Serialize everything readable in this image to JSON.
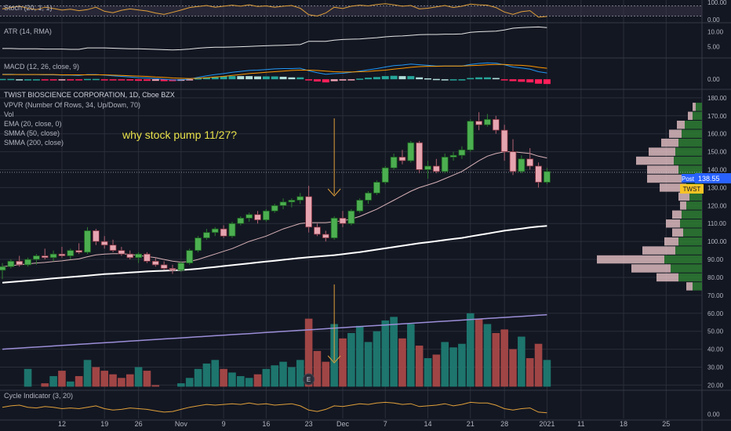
{
  "chart_data": {
    "type": "candlestick",
    "title": "TWIST BIOSCIENCE CORPORATION, 1D, Cboe BZX",
    "annotation": "why stock pump 11/27?",
    "panes": {
      "stoch": {
        "label": "Stoch (20, 1, 1)",
        "ticks": [
          {
            "v": 100,
            "label": "100.00"
          },
          {
            "v": 0,
            "label": "0.00"
          }
        ],
        "ylim": [
          -5,
          105
        ]
      },
      "atr": {
        "label": "ATR (14, RMA)",
        "ticks": [
          {
            "v": 10,
            "label": "10.00"
          },
          {
            "v": 5,
            "label": "5.00"
          }
        ],
        "ylim": [
          2,
          12.5
        ]
      },
      "macd": {
        "label": "MACD (12, 26, close, 9)",
        "ticks": [
          {
            "v": 0,
            "label": "0.00"
          }
        ],
        "ylim": [
          -2.2,
          6
        ]
      },
      "cycle": {
        "label": "Cycle Indicator (3, 20)",
        "ticks": [
          {
            "v": 0,
            "label": "0.00"
          }
        ],
        "ylim": [
          -0.3,
          1.6
        ]
      }
    },
    "main_legend": [
      "VPVR (Number Of Rows, 34, Up/Down, 70)",
      "Vol",
      "EMA (20, close, 0)",
      "SMMA (50, close)",
      "SMMA (200, close)"
    ],
    "price_ticks": [
      {
        "v": 180,
        "label": "180.00"
      },
      {
        "v": 170,
        "label": "170.00"
      },
      {
        "v": 160,
        "label": "160.00"
      },
      {
        "v": 150,
        "label": "150.00"
      },
      {
        "v": 140,
        "label": "140.00"
      },
      {
        "v": 130,
        "label": "130.00"
      },
      {
        "v": 120,
        "label": "120.00"
      },
      {
        "v": 110,
        "label": "110.00"
      },
      {
        "v": 100,
        "label": "100.00"
      },
      {
        "v": 90,
        "label": "90.00"
      },
      {
        "v": 80,
        "label": "80.00"
      },
      {
        "v": 70,
        "label": "70.00"
      },
      {
        "v": 60,
        "label": "60.00"
      },
      {
        "v": 50,
        "label": "50.00"
      },
      {
        "v": 40,
        "label": "40.00"
      },
      {
        "v": 30,
        "label": "30.00"
      },
      {
        "v": 20,
        "label": "20.00"
      }
    ],
    "price_ylim": [
      18,
      183
    ],
    "x_ticks": [
      {
        "i": 7,
        "label": "12"
      },
      {
        "i": 12,
        "label": "19"
      },
      {
        "i": 16,
        "label": "26"
      },
      {
        "i": 21,
        "label": "Nov"
      },
      {
        "i": 26,
        "label": "9"
      },
      {
        "i": 31,
        "label": "16"
      },
      {
        "i": 36,
        "label": "23"
      },
      {
        "i": 40,
        "label": "Dec"
      },
      {
        "i": 45,
        "label": "7"
      },
      {
        "i": 50,
        "label": "14"
      },
      {
        "i": 55,
        "label": "21"
      },
      {
        "i": 59,
        "label": "28"
      },
      {
        "i": 64,
        "label": "2021"
      },
      {
        "i": 68,
        "label": "11"
      },
      {
        "i": 73,
        "label": "18"
      },
      {
        "i": 78,
        "label": "25"
      }
    ],
    "earnings_marker": {
      "i": 36,
      "label": "E"
    },
    "last_price": {
      "value": 138.55,
      "label": "138.55",
      "tag": "Post",
      "symbol": "TWST"
    },
    "colors": {
      "up": "#26a69a",
      "down": "#ef5350",
      "vol_up": "#1e7a72",
      "vol_down": "#a84848",
      "ema": "#d9b2b8",
      "smma50": "#ffffff",
      "smma200": "#9b8ed8",
      "annotation": "#e8e24a",
      "arrow": "#e0a03a",
      "last_tag": "#2962ff",
      "symbol_tag": "#f7c325"
    },
    "ohlc": [
      [
        84,
        88,
        79,
        86
      ],
      [
        86,
        90,
        85,
        89
      ],
      [
        89,
        92,
        86,
        87
      ],
      [
        87,
        91,
        86,
        90
      ],
      [
        90,
        93,
        87,
        92
      ],
      [
        92,
        96,
        90,
        91
      ],
      [
        91,
        95,
        89,
        93
      ],
      [
        93,
        97,
        91,
        92
      ],
      [
        92,
        96,
        90,
        95
      ],
      [
        95,
        99,
        93,
        94
      ],
      [
        94,
        108,
        93,
        106
      ],
      [
        106,
        107,
        98,
        100
      ],
      [
        100,
        103,
        96,
        98
      ],
      [
        98,
        101,
        94,
        95
      ],
      [
        95,
        97,
        92,
        93
      ],
      [
        93,
        95,
        90,
        91
      ],
      [
        91,
        94,
        88,
        93
      ],
      [
        93,
        94,
        88,
        89
      ],
      [
        89,
        91,
        86,
        87
      ],
      [
        87,
        89,
        84,
        85
      ],
      [
        85,
        87,
        82,
        84
      ],
      [
        84,
        89,
        83,
        88
      ],
      [
        88,
        96,
        87,
        95
      ],
      [
        95,
        103,
        94,
        102
      ],
      [
        102,
        107,
        101,
        105
      ],
      [
        105,
        108,
        103,
        107
      ],
      [
        107,
        109,
        102,
        103
      ],
      [
        103,
        111,
        102,
        110
      ],
      [
        110,
        114,
        109,
        113
      ],
      [
        113,
        116,
        111,
        115
      ],
      [
        115,
        117,
        110,
        112
      ],
      [
        112,
        118,
        111,
        117
      ],
      [
        117,
        121,
        116,
        120
      ],
      [
        120,
        124,
        118,
        122
      ],
      [
        122,
        124,
        119,
        123
      ],
      [
        123,
        127,
        121,
        125
      ],
      [
        125,
        131,
        105,
        108
      ],
      [
        108,
        110,
        103,
        104
      ],
      [
        104,
        106,
        100,
        102
      ],
      [
        102,
        114,
        101,
        113
      ],
      [
        113,
        117,
        108,
        110
      ],
      [
        110,
        118,
        109,
        117
      ],
      [
        117,
        124,
        116,
        123
      ],
      [
        123,
        128,
        121,
        127
      ],
      [
        127,
        134,
        126,
        133
      ],
      [
        133,
        142,
        132,
        141
      ],
      [
        141,
        149,
        140,
        147
      ],
      [
        147,
        151,
        143,
        145
      ],
      [
        145,
        156,
        144,
        155
      ],
      [
        155,
        156,
        138,
        140
      ],
      [
        140,
        145,
        135,
        142
      ],
      [
        142,
        146,
        138,
        139
      ],
      [
        139,
        149,
        138,
        147
      ],
      [
        147,
        150,
        145,
        148
      ],
      [
        148,
        153,
        146,
        151
      ],
      [
        151,
        168,
        150,
        167
      ],
      [
        167,
        172,
        162,
        165
      ],
      [
        165,
        171,
        164,
        168
      ],
      [
        168,
        170,
        160,
        162
      ],
      [
        162,
        165,
        145,
        150
      ],
      [
        150,
        157,
        137,
        139
      ],
      [
        139,
        148,
        138,
        146
      ],
      [
        146,
        152,
        140,
        142
      ],
      [
        142,
        144,
        130,
        133
      ],
      [
        133,
        141,
        132,
        139
      ]
    ],
    "volume": [
      18,
      17,
      19,
      29,
      18,
      21,
      25,
      28,
      22,
      25,
      34,
      30,
      28,
      26,
      24,
      26,
      30,
      28,
      20,
      18,
      17,
      21,
      24,
      29,
      32,
      34,
      29,
      27,
      25,
      24,
      26,
      29,
      31,
      33,
      30,
      34,
      57,
      39,
      33,
      54,
      46,
      49,
      53,
      44,
      50,
      56,
      58,
      46,
      54,
      42,
      35,
      37,
      44,
      41,
      43,
      60,
      57,
      54,
      49,
      51,
      40,
      47,
      35,
      43,
      34
    ],
    "ema20": [
      86,
      86.5,
      87,
      87.5,
      88,
      88.3,
      88.8,
      89.2,
      89.8,
      90.3,
      91.5,
      92.5,
      93,
      93.2,
      93.2,
      92.8,
      92.2,
      91.6,
      91,
      90,
      89,
      88.5,
      88.8,
      90,
      91.5,
      93,
      94.5,
      96,
      98,
      100,
      101.5,
      103,
      105,
      107,
      108.5,
      110,
      110.5,
      110.5,
      110.5,
      111,
      111.5,
      112.5,
      114,
      116,
      118,
      120.5,
      123,
      125.5,
      128,
      130,
      131.5,
      133,
      135,
      137,
      139,
      142,
      145,
      147.5,
      149,
      150,
      150,
      149.5,
      149,
      147.5,
      146.5
    ],
    "smma50": [
      77,
      77.4,
      77.8,
      78.2,
      78.6,
      79,
      79.4,
      79.8,
      80.2,
      80.6,
      81,
      81.4,
      81.8,
      82.1,
      82.4,
      82.7,
      83,
      83.3,
      83.5,
      83.7,
      83.9,
      84.1,
      84.4,
      84.8,
      85.3,
      85.8,
      86.3,
      86.8,
      87.3,
      87.8,
      88.3,
      88.8,
      89.3,
      89.8,
      90.3,
      90.8,
      91.2,
      91.6,
      92,
      92.4,
      92.9,
      93.5,
      94.1,
      94.8,
      95.5,
      96.2,
      96.9,
      97.6,
      98.3,
      99,
      99.6,
      100.2,
      100.8,
      101.4,
      102,
      102.8,
      103.6,
      104.4,
      105.2,
      106,
      106.6,
      107.2,
      107.8,
      108.3,
      108.7
    ],
    "smma200": [
      40,
      40.3,
      40.6,
      40.9,
      41.2,
      41.5,
      41.8,
      42.1,
      42.4,
      42.7,
      43,
      43.3,
      43.6,
      43.9,
      44.2,
      44.5,
      44.8,
      45.1,
      45.4,
      45.7,
      46,
      46.3,
      46.6,
      46.9,
      47.2,
      47.5,
      47.8,
      48.1,
      48.4,
      48.7,
      49,
      49.3,
      49.6,
      49.9,
      50.2,
      50.5,
      50.8,
      51.1,
      51.4,
      51.7,
      52,
      52.3,
      52.6,
      52.9,
      53.2,
      53.5,
      53.8,
      54.1,
      54.4,
      54.7,
      55,
      55.3,
      55.6,
      55.9,
      56.2,
      56.5,
      56.8,
      57.1,
      57.4,
      57.7,
      58,
      58.3,
      58.6,
      58.9,
      59.2
    ],
    "stoch": [
      62,
      70,
      78,
      66,
      58,
      72,
      64,
      55,
      60,
      52,
      58,
      72,
      48,
      40,
      54,
      62,
      56,
      50,
      38,
      30,
      42,
      55,
      70,
      76,
      82,
      72,
      78,
      84,
      78,
      86,
      76,
      80,
      72,
      78,
      82,
      66,
      28,
      20,
      38,
      72,
      64,
      78,
      84,
      80,
      88,
      92,
      86,
      78,
      82,
      62,
      66,
      74,
      82,
      70,
      78,
      90,
      86,
      84,
      70,
      44,
      30,
      46,
      52,
      14,
      18
    ],
    "atr": [
      4.4,
      4.4,
      4.3,
      4.3,
      4.3,
      4.2,
      4.2,
      4.2,
      4.1,
      4.1,
      4.6,
      4.6,
      4.6,
      4.5,
      4.4,
      4.3,
      4.3,
      4.2,
      4.1,
      4.0,
      3.9,
      4.0,
      4.2,
      4.5,
      4.7,
      4.8,
      4.8,
      4.9,
      5.0,
      5.1,
      5.2,
      5.3,
      5.4,
      5.5,
      5.6,
      5.7,
      6.8,
      6.8,
      6.8,
      7.2,
      7.4,
      7.5,
      7.6,
      7.8,
      8.0,
      8.3,
      8.5,
      8.6,
      8.8,
      9.0,
      9.1,
      9.1,
      9.2,
      9.2,
      9.3,
      9.8,
      10.0,
      10.1,
      10.2,
      10.6,
      11.2,
      11.4,
      11.5,
      11.6,
      11.4
    ],
    "macd": [
      1.6,
      1.6,
      1.5,
      1.5,
      1.5,
      1.4,
      1.4,
      1.3,
      1.3,
      1.2,
      1.5,
      1.5,
      1.3,
      1.1,
      0.9,
      0.7,
      0.5,
      0.4,
      0.2,
      0.0,
      -0.2,
      -0.2,
      0.1,
      0.6,
      1.1,
      1.5,
      1.8,
      2.2,
      2.5,
      2.8,
      2.9,
      3.1,
      3.3,
      3.4,
      3.4,
      3.5,
      2.7,
      2.1,
      1.6,
      1.8,
      1.9,
      2.2,
      2.6,
      3.0,
      3.4,
      3.9,
      4.3,
      4.5,
      4.8,
      4.6,
      4.4,
      4.2,
      4.2,
      4.2,
      4.2,
      4.7,
      5.0,
      5.2,
      5.1,
      4.6,
      3.9,
      3.6,
      3.2,
      2.4,
      2.0
    ],
    "macd_signal": [
      1.5,
      1.5,
      1.5,
      1.5,
      1.5,
      1.5,
      1.5,
      1.4,
      1.4,
      1.4,
      1.4,
      1.4,
      1.4,
      1.3,
      1.2,
      1.1,
      1.0,
      0.9,
      0.7,
      0.6,
      0.4,
      0.3,
      0.2,
      0.3,
      0.5,
      0.7,
      0.9,
      1.2,
      1.5,
      1.8,
      2.0,
      2.2,
      2.4,
      2.6,
      2.8,
      2.9,
      2.9,
      2.8,
      2.6,
      2.4,
      2.3,
      2.3,
      2.4,
      2.5,
      2.7,
      2.9,
      3.2,
      3.5,
      3.8,
      4.0,
      4.1,
      4.1,
      4.2,
      4.2,
      4.2,
      4.3,
      4.4,
      4.6,
      4.7,
      4.7,
      4.5,
      4.4,
      4.2,
      3.8,
      3.5
    ],
    "cycle": [
      0.5,
      0.6,
      0.65,
      0.5,
      0.45,
      0.55,
      0.5,
      0.4,
      0.45,
      0.4,
      0.5,
      0.6,
      0.4,
      0.3,
      0.35,
      0.45,
      0.4,
      0.35,
      0.25,
      0.15,
      0.2,
      0.35,
      0.5,
      0.6,
      0.7,
      0.65,
      0.7,
      0.75,
      0.7,
      0.8,
      0.7,
      0.75,
      0.65,
      0.7,
      0.75,
      0.6,
      0.3,
      0.2,
      0.35,
      0.6,
      0.55,
      0.65,
      0.75,
      0.7,
      0.8,
      0.85,
      0.8,
      0.7,
      0.75,
      0.55,
      0.6,
      0.65,
      0.75,
      0.6,
      0.7,
      0.85,
      0.8,
      0.8,
      0.65,
      0.4,
      0.3,
      0.4,
      0.45,
      0.15,
      0.1
    ],
    "vpvr": {
      "row_prices": [
        175,
        170,
        165,
        160,
        155,
        150,
        145,
        140,
        135,
        130,
        125,
        120,
        115,
        110,
        105,
        100,
        95,
        90,
        85,
        80,
        75
      ],
      "up": [
        8,
        12,
        22,
        26,
        30,
        34,
        36,
        30,
        24,
        20,
        16,
        20,
        26,
        28,
        24,
        30,
        34,
        48,
        40,
        30,
        12
      ],
      "down": [
        4,
        6,
        10,
        16,
        22,
        34,
        48,
        40,
        46,
        34,
        14,
        8,
        12,
        18,
        14,
        18,
        42,
        86,
        50,
        28,
        8
      ]
    }
  }
}
